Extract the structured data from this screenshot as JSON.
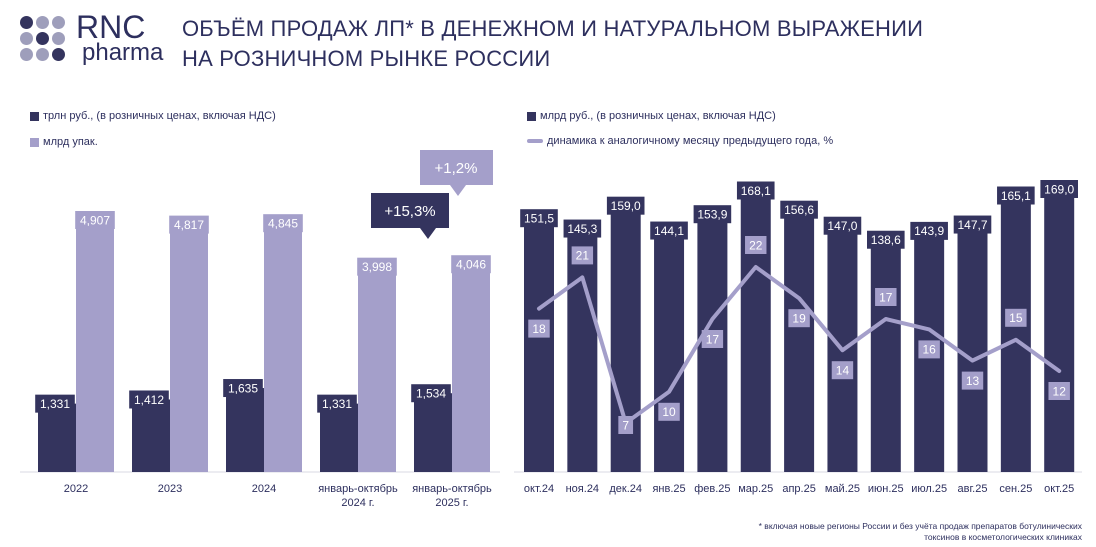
{
  "header": {
    "logo_top": "RNC",
    "logo_bottom": "pharma",
    "title_line1": "ОБЪЁМ ПРОДАЖ ЛП* В ДЕНЕЖНОМ И НАТУРАЛЬНОМ ВЫРАЖЕНИИ",
    "title_line2": "НА РОЗНИЧНОМ РЫНКЕ РОССИИ"
  },
  "colors": {
    "dark": "#34345e",
    "light": "#a49fca",
    "grey_dot": "#9e9ebb"
  },
  "footnote": {
    "line1": "* включая новые регионы России и без учёта продаж препаратов ботулинических",
    "line2": "токсинов в косметологических клиниках"
  },
  "chart_data": [
    {
      "type": "bar",
      "categories": [
        "2022",
        "2023",
        "2024",
        "январь-октябрь 2024 г.",
        "январь-октябрь 2025 г."
      ],
      "series": [
        {
          "name": "трлн руб., (в розничных ценах, включая НДС)",
          "values": [
            1.331,
            1.412,
            1.635,
            1.331,
            1.534
          ],
          "labels": [
            "1,331",
            "1,412",
            "1,635",
            "1,331",
            "1,534"
          ]
        },
        {
          "name": "млрд упак.",
          "values": [
            4.907,
            4.817,
            4.845,
            3.998,
            4.046
          ],
          "labels": [
            "4,907",
            "4,817",
            "4,845",
            "3,998",
            "4,046"
          ]
        }
      ],
      "annotations": [
        "+15,3%",
        "+1,2%"
      ]
    },
    {
      "type": "bar",
      "categories": [
        "окт.24",
        "ноя.24",
        "дек.24",
        "янв.25",
        "фев.25",
        "мар.25",
        "апр.25",
        "май.25",
        "июн.25",
        "июл.25",
        "авг.25",
        "сен.25",
        "окт.25"
      ],
      "series": [
        {
          "name": "млрд руб., (в розничных ценах, включая НДС)",
          "values": [
            151.5,
            145.3,
            159.0,
            144.1,
            153.9,
            168.1,
            156.6,
            147.0,
            138.6,
            143.9,
            147.7,
            165.1,
            169.0
          ],
          "labels": [
            "151,5",
            "145,3",
            "159,0",
            "144,1",
            "153,9",
            "168,1",
            "156,6",
            "147,0",
            "138,6",
            "143,9",
            "147,7",
            "165,1",
            "169,0"
          ]
        },
        {
          "name": "динамика к аналогичному месяцу предыдущего года, %",
          "type": "line",
          "values": [
            18,
            21,
            7,
            10,
            17,
            22,
            19,
            14,
            17,
            16,
            13,
            15,
            12
          ]
        }
      ]
    }
  ]
}
